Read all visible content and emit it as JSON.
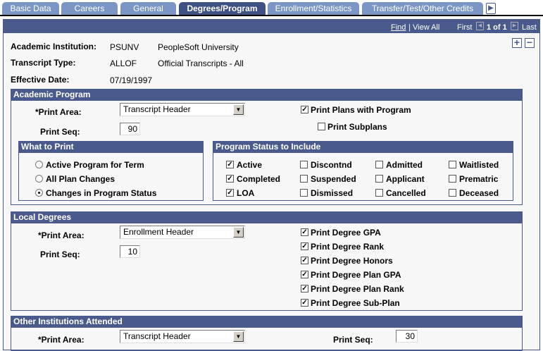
{
  "tabs": [
    {
      "label": "Basic Data"
    },
    {
      "label": "Careers"
    },
    {
      "label": "General"
    },
    {
      "label": "Degrees/Program",
      "active": true
    },
    {
      "label": "Enrollment/Statistics"
    },
    {
      "label": "Transfer/Test/Other Credits"
    }
  ],
  "nav": {
    "find": "Find",
    "view_all": "View All",
    "first": "First",
    "count": "1 of 1",
    "last": "Last",
    "sep": "|"
  },
  "header": {
    "institution_label": "Academic Institution:",
    "institution_code": "PSUNV",
    "institution_name": "PeopleSoft University",
    "transcript_label": "Transcript Type:",
    "transcript_code": "ALLOF",
    "transcript_name": "Official Transcripts - All",
    "effdt_label": "Effective Date:",
    "effdt": "07/19/1997",
    "add": "+",
    "remove": "−"
  },
  "academic_program": {
    "title": "Academic Program",
    "print_area_label": "*Print Area:",
    "print_area": "Transcript Header",
    "print_seq_label": "Print Seq:",
    "print_seq": "90",
    "print_plans": "Print Plans with Program",
    "print_subplans": "Print Subplans",
    "what_to_print": {
      "title": "What to Print",
      "options": [
        {
          "label": "Active Program for Term",
          "selected": false
        },
        {
          "label": "All Plan Changes",
          "selected": false
        },
        {
          "label": "Changes in Program Status",
          "selected": true
        }
      ]
    },
    "status": {
      "title": "Program Status to Include",
      "items": [
        {
          "label": "Active",
          "checked": true
        },
        {
          "label": "Discontnd",
          "checked": false
        },
        {
          "label": "Admitted",
          "checked": false
        },
        {
          "label": "Waitlisted",
          "checked": false
        },
        {
          "label": "Completed",
          "checked": true
        },
        {
          "label": "Suspended",
          "checked": false
        },
        {
          "label": "Applicant",
          "checked": false
        },
        {
          "label": "Prematric",
          "checked": false
        },
        {
          "label": "LOA",
          "checked": true
        },
        {
          "label": "Dismissed",
          "checked": false
        },
        {
          "label": "Cancelled",
          "checked": false
        },
        {
          "label": "Deceased",
          "checked": false
        }
      ]
    }
  },
  "local_degrees": {
    "title": "Local Degrees",
    "print_area_label": "*Print Area:",
    "print_area": "Enrollment Header",
    "print_seq_label": "Print Seq:",
    "print_seq": "10",
    "options": [
      {
        "label": "Print Degree GPA",
        "checked": true
      },
      {
        "label": "Print Degree Rank",
        "checked": true
      },
      {
        "label": "Print Degree Honors",
        "checked": true
      },
      {
        "label": "Print Degree Plan GPA",
        "checked": true
      },
      {
        "label": "Print Degree Plan Rank",
        "checked": true
      },
      {
        "label": "Print Degree Sub-Plan",
        "checked": true
      }
    ]
  },
  "other_institutions": {
    "title": "Other Institutions Attended",
    "print_area_label": "*Print Area:",
    "print_area": "Transcript Header",
    "print_seq_label": "Print Seq:",
    "print_seq": "30"
  }
}
